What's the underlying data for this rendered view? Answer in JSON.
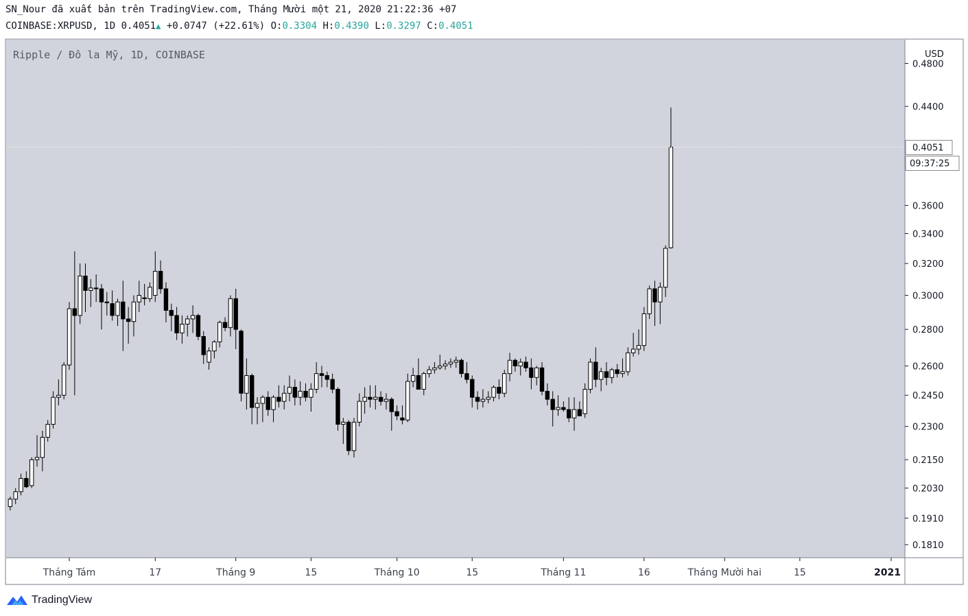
{
  "header": {
    "publisher_line": "SN_Nour đã xuất bản trên TradingView.com, Tháng Mười một 21, 2020 21:22:36 +07",
    "symbol": "COINBASE:XRPUSD, 1D",
    "last": "0.4051",
    "change": "+0.0747 (+22.61%)",
    "o_label": "O:",
    "o": "0.3304",
    "h_label": "H:",
    "h": "0.4390",
    "l_label": "L:",
    "l": "0.3297",
    "c_label": "C:",
    "c": "0.4051"
  },
  "colors": {
    "pane_bg": "#d1d4dc",
    "candle": "#000000",
    "text_muted": "#555a66",
    "accent": "#26a69a"
  },
  "chart_data": {
    "type": "candlestick",
    "title": "Ripple / Đô la Mỹ, 1D, COINBASE",
    "currency_label": "USD",
    "y_scale": "log",
    "ylim": [
      0.178,
      0.498
    ],
    "y_ticks": [
      "0.4800",
      "0.4400",
      "0.3600",
      "0.3400",
      "0.3200",
      "0.3000",
      "0.2800",
      "0.2600",
      "0.2450",
      "0.2300",
      "0.2150",
      "0.2030",
      "0.1910",
      "0.1810"
    ],
    "x_ticks": [
      {
        "day": 0,
        "label": "Tháng Tám"
      },
      {
        "day": 16,
        "label": "17"
      },
      {
        "day": 31,
        "label": "Tháng 9"
      },
      {
        "day": 45,
        "label": "15"
      },
      {
        "day": 61,
        "label": "Tháng 10"
      },
      {
        "day": 75,
        "label": "15"
      },
      {
        "day": 92,
        "label": "Tháng 11"
      },
      {
        "day": 107,
        "label": "16"
      },
      {
        "day": 122,
        "label": "Tháng Mười hai"
      },
      {
        "day": 136,
        "label": "15"
      },
      {
        "day": 153,
        "label": "2021"
      }
    ],
    "last_price_label": "0.4051",
    "countdown_label": "09:37:25",
    "candles": [
      {
        "d": -11,
        "o": 0.1955,
        "h": 0.1995,
        "l": 0.194,
        "c": 0.1985
      },
      {
        "d": -10,
        "o": 0.1985,
        "h": 0.203,
        "l": 0.1965,
        "c": 0.2015
      },
      {
        "d": -9,
        "o": 0.2015,
        "h": 0.209,
        "l": 0.2,
        "c": 0.207
      },
      {
        "d": -8,
        "o": 0.207,
        "h": 0.21,
        "l": 0.203,
        "c": 0.2035
      },
      {
        "d": -7,
        "o": 0.204,
        "h": 0.216,
        "l": 0.203,
        "c": 0.215
      },
      {
        "d": -6,
        "o": 0.215,
        "h": 0.226,
        "l": 0.212,
        "c": 0.216
      },
      {
        "d": -5,
        "o": 0.216,
        "h": 0.228,
        "l": 0.21,
        "c": 0.225
      },
      {
        "d": -4,
        "o": 0.225,
        "h": 0.233,
        "l": 0.223,
        "c": 0.231
      },
      {
        "d": -3,
        "o": 0.231,
        "h": 0.247,
        "l": 0.229,
        "c": 0.244
      },
      {
        "d": -2,
        "o": 0.244,
        "h": 0.253,
        "l": 0.24,
        "c": 0.245
      },
      {
        "d": -1,
        "o": 0.245,
        "h": 0.262,
        "l": 0.243,
        "c": 0.2605
      },
      {
        "d": 0,
        "o": 0.2605,
        "h": 0.296,
        "l": 0.258,
        "c": 0.292
      },
      {
        "d": 1,
        "o": 0.292,
        "h": 0.328,
        "l": 0.245,
        "c": 0.288
      },
      {
        "d": 2,
        "o": 0.288,
        "h": 0.32,
        "l": 0.283,
        "c": 0.312
      },
      {
        "d": 3,
        "o": 0.312,
        "h": 0.32,
        "l": 0.29,
        "c": 0.303
      },
      {
        "d": 4,
        "o": 0.303,
        "h": 0.31,
        "l": 0.293,
        "c": 0.3045
      },
      {
        "d": 5,
        "o": 0.3045,
        "h": 0.313,
        "l": 0.296,
        "c": 0.304
      },
      {
        "d": 6,
        "o": 0.304,
        "h": 0.307,
        "l": 0.28,
        "c": 0.296
      },
      {
        "d": 7,
        "o": 0.296,
        "h": 0.302,
        "l": 0.288,
        "c": 0.2955
      },
      {
        "d": 8,
        "o": 0.295,
        "h": 0.303,
        "l": 0.285,
        "c": 0.288
      },
      {
        "d": 9,
        "o": 0.288,
        "h": 0.298,
        "l": 0.282,
        "c": 0.296
      },
      {
        "d": 10,
        "o": 0.296,
        "h": 0.309,
        "l": 0.268,
        "c": 0.286
      },
      {
        "d": 11,
        "o": 0.286,
        "h": 0.293,
        "l": 0.272,
        "c": 0.2845
      },
      {
        "d": 12,
        "o": 0.2845,
        "h": 0.3,
        "l": 0.276,
        "c": 0.296
      },
      {
        "d": 13,
        "o": 0.296,
        "h": 0.309,
        "l": 0.29,
        "c": 0.3
      },
      {
        "d": 14,
        "o": 0.2985,
        "h": 0.307,
        "l": 0.294,
        "c": 0.298
      },
      {
        "d": 15,
        "o": 0.298,
        "h": 0.308,
        "l": 0.296,
        "c": 0.305
      },
      {
        "d": 16,
        "o": 0.3,
        "h": 0.328,
        "l": 0.296,
        "c": 0.315
      },
      {
        "d": 17,
        "o": 0.315,
        "h": 0.322,
        "l": 0.301,
        "c": 0.304
      },
      {
        "d": 18,
        "o": 0.304,
        "h": 0.308,
        "l": 0.284,
        "c": 0.291
      },
      {
        "d": 19,
        "o": 0.291,
        "h": 0.295,
        "l": 0.279,
        "c": 0.288
      },
      {
        "d": 20,
        "o": 0.288,
        "h": 0.293,
        "l": 0.274,
        "c": 0.278
      },
      {
        "d": 21,
        "o": 0.278,
        "h": 0.288,
        "l": 0.272,
        "c": 0.283
      },
      {
        "d": 22,
        "o": 0.283,
        "h": 0.288,
        "l": 0.276,
        "c": 0.286
      },
      {
        "d": 23,
        "o": 0.286,
        "h": 0.294,
        "l": 0.278,
        "c": 0.288
      },
      {
        "d": 24,
        "o": 0.288,
        "h": 0.289,
        "l": 0.274,
        "c": 0.276
      },
      {
        "d": 25,
        "o": 0.276,
        "h": 0.279,
        "l": 0.261,
        "c": 0.266
      },
      {
        "d": 26,
        "o": 0.262,
        "h": 0.27,
        "l": 0.258,
        "c": 0.268
      },
      {
        "d": 27,
        "o": 0.268,
        "h": 0.274,
        "l": 0.264,
        "c": 0.273
      },
      {
        "d": 28,
        "o": 0.273,
        "h": 0.285,
        "l": 0.27,
        "c": 0.284
      },
      {
        "d": 29,
        "o": 0.284,
        "h": 0.287,
        "l": 0.279,
        "c": 0.281
      },
      {
        "d": 30,
        "o": 0.281,
        "h": 0.3,
        "l": 0.276,
        "c": 0.298
      },
      {
        "d": 31,
        "o": 0.298,
        "h": 0.304,
        "l": 0.269,
        "c": 0.28
      },
      {
        "d": 32,
        "o": 0.279,
        "h": 0.28,
        "l": 0.242,
        "c": 0.246
      },
      {
        "d": 33,
        "o": 0.246,
        "h": 0.264,
        "l": 0.238,
        "c": 0.255
      },
      {
        "d": 34,
        "o": 0.255,
        "h": 0.256,
        "l": 0.231,
        "c": 0.239
      },
      {
        "d": 35,
        "o": 0.239,
        "h": 0.244,
        "l": 0.231,
        "c": 0.241
      },
      {
        "d": 36,
        "o": 0.241,
        "h": 0.245,
        "l": 0.232,
        "c": 0.244
      },
      {
        "d": 37,
        "o": 0.244,
        "h": 0.247,
        "l": 0.235,
        "c": 0.238
      },
      {
        "d": 38,
        "o": 0.238,
        "h": 0.245,
        "l": 0.232,
        "c": 0.244
      },
      {
        "d": 39,
        "o": 0.244,
        "h": 0.25,
        "l": 0.239,
        "c": 0.242
      },
      {
        "d": 40,
        "o": 0.242,
        "h": 0.25,
        "l": 0.238,
        "c": 0.246
      },
      {
        "d": 41,
        "o": 0.246,
        "h": 0.255,
        "l": 0.242,
        "c": 0.249
      },
      {
        "d": 42,
        "o": 0.249,
        "h": 0.253,
        "l": 0.24,
        "c": 0.244
      },
      {
        "d": 43,
        "o": 0.244,
        "h": 0.252,
        "l": 0.24,
        "c": 0.247
      },
      {
        "d": 44,
        "o": 0.247,
        "h": 0.251,
        "l": 0.242,
        "c": 0.244
      },
      {
        "d": 45,
        "o": 0.244,
        "h": 0.251,
        "l": 0.237,
        "c": 0.248
      },
      {
        "d": 46,
        "o": 0.248,
        "h": 0.262,
        "l": 0.246,
        "c": 0.256
      },
      {
        "d": 47,
        "o": 0.256,
        "h": 0.26,
        "l": 0.249,
        "c": 0.255
      },
      {
        "d": 48,
        "o": 0.255,
        "h": 0.257,
        "l": 0.249,
        "c": 0.253
      },
      {
        "d": 49,
        "o": 0.253,
        "h": 0.256,
        "l": 0.246,
        "c": 0.248
      },
      {
        "d": 50,
        "o": 0.248,
        "h": 0.249,
        "l": 0.228,
        "c": 0.231
      },
      {
        "d": 51,
        "o": 0.231,
        "h": 0.234,
        "l": 0.222,
        "c": 0.232
      },
      {
        "d": 52,
        "o": 0.232,
        "h": 0.233,
        "l": 0.217,
        "c": 0.219
      },
      {
        "d": 53,
        "o": 0.219,
        "h": 0.234,
        "l": 0.216,
        "c": 0.232
      },
      {
        "d": 54,
        "o": 0.232,
        "h": 0.246,
        "l": 0.23,
        "c": 0.242
      },
      {
        "d": 55,
        "o": 0.242,
        "h": 0.249,
        "l": 0.236,
        "c": 0.244
      },
      {
        "d": 56,
        "o": 0.244,
        "h": 0.25,
        "l": 0.239,
        "c": 0.243
      },
      {
        "d": 57,
        "o": 0.243,
        "h": 0.25,
        "l": 0.238,
        "c": 0.244
      },
      {
        "d": 58,
        "o": 0.244,
        "h": 0.247,
        "l": 0.24,
        "c": 0.242
      },
      {
        "d": 59,
        "o": 0.242,
        "h": 0.246,
        "l": 0.238,
        "c": 0.243
      },
      {
        "d": 60,
        "o": 0.243,
        "h": 0.244,
        "l": 0.228,
        "c": 0.237
      },
      {
        "d": 61,
        "o": 0.237,
        "h": 0.24,
        "l": 0.233,
        "c": 0.235
      },
      {
        "d": 62,
        "o": 0.234,
        "h": 0.24,
        "l": 0.231,
        "c": 0.233
      },
      {
        "d": 63,
        "o": 0.233,
        "h": 0.256,
        "l": 0.232,
        "c": 0.252
      },
      {
        "d": 64,
        "o": 0.252,
        "h": 0.259,
        "l": 0.249,
        "c": 0.255
      },
      {
        "d": 65,
        "o": 0.255,
        "h": 0.264,
        "l": 0.248,
        "c": 0.248
      },
      {
        "d": 66,
        "o": 0.248,
        "h": 0.257,
        "l": 0.245,
        "c": 0.256
      },
      {
        "d": 67,
        "o": 0.256,
        "h": 0.26,
        "l": 0.254,
        "c": 0.258
      },
      {
        "d": 68,
        "o": 0.258,
        "h": 0.262,
        "l": 0.256,
        "c": 0.259
      },
      {
        "d": 69,
        "o": 0.259,
        "h": 0.266,
        "l": 0.258,
        "c": 0.26
      },
      {
        "d": 70,
        "o": 0.26,
        "h": 0.263,
        "l": 0.258,
        "c": 0.261
      },
      {
        "d": 71,
        "o": 0.261,
        "h": 0.264,
        "l": 0.259,
        "c": 0.262
      },
      {
        "d": 72,
        "o": 0.262,
        "h": 0.265,
        "l": 0.259,
        "c": 0.263
      },
      {
        "d": 73,
        "o": 0.263,
        "h": 0.264,
        "l": 0.254,
        "c": 0.256
      },
      {
        "d": 74,
        "o": 0.256,
        "h": 0.262,
        "l": 0.251,
        "c": 0.253
      },
      {
        "d": 75,
        "o": 0.253,
        "h": 0.255,
        "l": 0.239,
        "c": 0.244
      },
      {
        "d": 76,
        "o": 0.244,
        "h": 0.247,
        "l": 0.238,
        "c": 0.242
      },
      {
        "d": 77,
        "o": 0.242,
        "h": 0.248,
        "l": 0.239,
        "c": 0.243
      },
      {
        "d": 78,
        "o": 0.243,
        "h": 0.247,
        "l": 0.241,
        "c": 0.244
      },
      {
        "d": 79,
        "o": 0.244,
        "h": 0.25,
        "l": 0.242,
        "c": 0.249
      },
      {
        "d": 80,
        "o": 0.249,
        "h": 0.253,
        "l": 0.243,
        "c": 0.246
      },
      {
        "d": 81,
        "o": 0.246,
        "h": 0.258,
        "l": 0.244,
        "c": 0.256
      },
      {
        "d": 82,
        "o": 0.256,
        "h": 0.267,
        "l": 0.252,
        "c": 0.263
      },
      {
        "d": 83,
        "o": 0.263,
        "h": 0.264,
        "l": 0.257,
        "c": 0.26
      },
      {
        "d": 84,
        "o": 0.26,
        "h": 0.264,
        "l": 0.255,
        "c": 0.262
      },
      {
        "d": 85,
        "o": 0.262,
        "h": 0.265,
        "l": 0.257,
        "c": 0.259
      },
      {
        "d": 86,
        "o": 0.259,
        "h": 0.264,
        "l": 0.248,
        "c": 0.254
      },
      {
        "d": 87,
        "o": 0.254,
        "h": 0.26,
        "l": 0.25,
        "c": 0.259
      },
      {
        "d": 88,
        "o": 0.259,
        "h": 0.262,
        "l": 0.245,
        "c": 0.247
      },
      {
        "d": 89,
        "o": 0.247,
        "h": 0.251,
        "l": 0.24,
        "c": 0.243
      },
      {
        "d": 90,
        "o": 0.243,
        "h": 0.247,
        "l": 0.23,
        "c": 0.238
      },
      {
        "d": 91,
        "o": 0.238,
        "h": 0.245,
        "l": 0.235,
        "c": 0.239
      },
      {
        "d": 92,
        "o": 0.239,
        "h": 0.242,
        "l": 0.237,
        "c": 0.238
      },
      {
        "d": 93,
        "o": 0.238,
        "h": 0.244,
        "l": 0.232,
        "c": 0.234
      },
      {
        "d": 94,
        "o": 0.234,
        "h": 0.244,
        "l": 0.228,
        "c": 0.238
      },
      {
        "d": 95,
        "o": 0.238,
        "h": 0.242,
        "l": 0.235,
        "c": 0.235
      },
      {
        "d": 96,
        "o": 0.236,
        "h": 0.251,
        "l": 0.234,
        "c": 0.248
      },
      {
        "d": 97,
        "o": 0.248,
        "h": 0.264,
        "l": 0.246,
        "c": 0.262
      },
      {
        "d": 98,
        "o": 0.262,
        "h": 0.27,
        "l": 0.249,
        "c": 0.253
      },
      {
        "d": 99,
        "o": 0.253,
        "h": 0.259,
        "l": 0.247,
        "c": 0.257
      },
      {
        "d": 100,
        "o": 0.257,
        "h": 0.262,
        "l": 0.25,
        "c": 0.254
      },
      {
        "d": 101,
        "o": 0.254,
        "h": 0.259,
        "l": 0.251,
        "c": 0.258
      },
      {
        "d": 102,
        "o": 0.258,
        "h": 0.261,
        "l": 0.254,
        "c": 0.256
      },
      {
        "d": 103,
        "o": 0.256,
        "h": 0.264,
        "l": 0.254,
        "c": 0.257
      },
      {
        "d": 104,
        "o": 0.257,
        "h": 0.27,
        "l": 0.255,
        "c": 0.267
      },
      {
        "d": 105,
        "o": 0.267,
        "h": 0.278,
        "l": 0.265,
        "c": 0.269
      },
      {
        "d": 106,
        "o": 0.269,
        "h": 0.28,
        "l": 0.266,
        "c": 0.271
      },
      {
        "d": 107,
        "o": 0.271,
        "h": 0.293,
        "l": 0.268,
        "c": 0.289
      },
      {
        "d": 108,
        "o": 0.289,
        "h": 0.306,
        "l": 0.286,
        "c": 0.304
      },
      {
        "d": 109,
        "o": 0.304,
        "h": 0.309,
        "l": 0.282,
        "c": 0.296
      },
      {
        "d": 110,
        "o": 0.296,
        "h": 0.308,
        "l": 0.283,
        "c": 0.305
      },
      {
        "d": 111,
        "o": 0.305,
        "h": 0.332,
        "l": 0.299,
        "c": 0.33
      },
      {
        "d": 112,
        "o": 0.3304,
        "h": 0.439,
        "l": 0.3297,
        "c": 0.4051
      }
    ]
  },
  "footer": {
    "brand": "TradingView"
  }
}
